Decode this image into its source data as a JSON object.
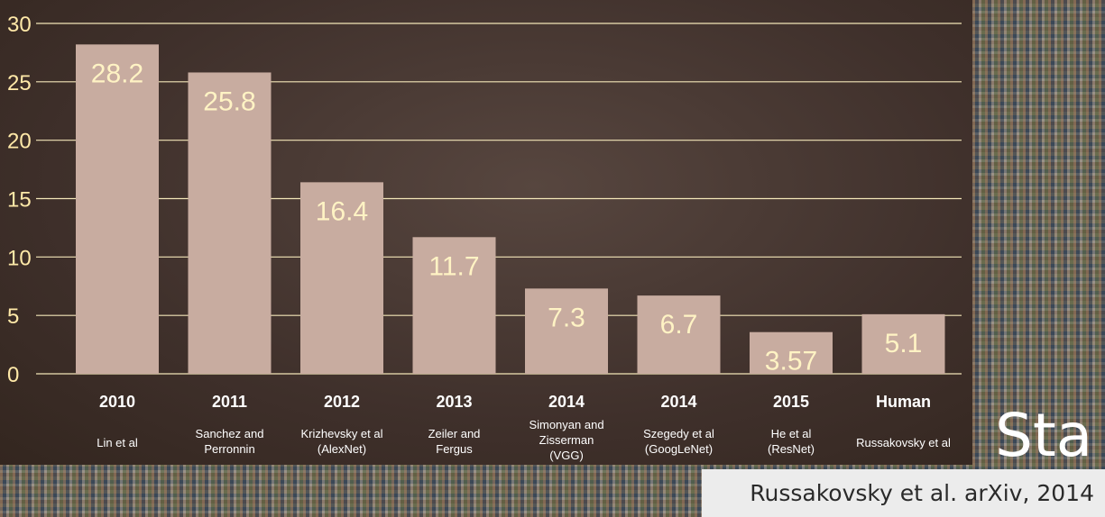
{
  "chart_data": {
    "type": "bar",
    "title": "",
    "xlabel": "",
    "ylabel": "",
    "ylim": [
      0,
      30
    ],
    "yticks": [
      0,
      5,
      10,
      15,
      20,
      25,
      30
    ],
    "grid": true,
    "categories": [
      "2010",
      "2011",
      "2012",
      "2013",
      "2014",
      "2014",
      "2015",
      "Human"
    ],
    "authors": [
      [
        "Lin et al"
      ],
      [
        "Sanchez and",
        "Perronnin"
      ],
      [
        "Krizhevsky et al",
        "(AlexNet)"
      ],
      [
        "Zeiler and",
        "Fergus"
      ],
      [
        "Simonyan and",
        "Zisserman",
        "(VGG)"
      ],
      [
        "Szegedy et al",
        "(GoogLeNet)"
      ],
      [
        "He et al",
        "(ResNet)"
      ],
      [
        "Russakovsky et al"
      ]
    ],
    "values": [
      28.2,
      25.8,
      16.4,
      11.7,
      7.3,
      6.7,
      3.57,
      5.1
    ],
    "value_labels": [
      "28.2",
      "25.8",
      "16.4",
      "11.7",
      "7.3",
      "6.7",
      "3.57",
      "5.1"
    ],
    "colors": {
      "bar": "#c8aca0",
      "grid": "#f3e6b8",
      "tick": "#ffe9a8",
      "value_label": "#fff3c4"
    }
  },
  "caption": "Russakovsky et al. arXiv, 2014",
  "watermark": "Sta"
}
